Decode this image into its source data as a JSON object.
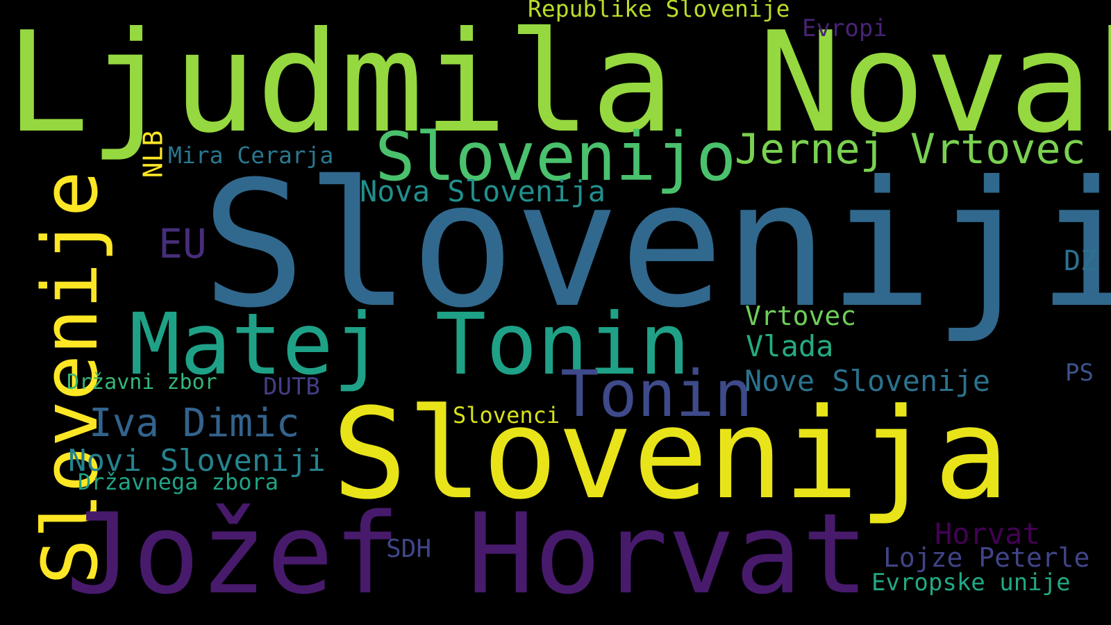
{
  "background": "#000000",
  "words": [
    {
      "text": "Ljudmila Novak",
      "color": "#95d840"
    },
    {
      "text": "Slovenijo",
      "color": "#4ac16d"
    },
    {
      "text": "Jernej Vrtovec",
      "color": "#7ad151"
    },
    {
      "text": "Republike Slovenije",
      "color": "#b8de29"
    },
    {
      "text": "Evropi",
      "color": "#482475"
    },
    {
      "text": "NLB",
      "color": "#fde725"
    },
    {
      "text": "Mira Cerarja",
      "color": "#2a788e"
    },
    {
      "text": "Nova Slovenija",
      "color": "#21908d"
    },
    {
      "text": "Slovenije",
      "color": "#fde725"
    },
    {
      "text": "Sloveniji",
      "color": "#31688e"
    },
    {
      "text": "EU",
      "color": "#472d7b"
    },
    {
      "text": "DZ",
      "color": "#2c728e"
    },
    {
      "text": "Matej Tonin",
      "color": "#1fa187"
    },
    {
      "text": "Vrtovec",
      "color": "#6ece58"
    },
    {
      "text": "Vlada",
      "color": "#25ab82"
    },
    {
      "text": "Tonin",
      "color": "#3e4a89"
    },
    {
      "text": "Državni zbor",
      "color": "#35b779"
    },
    {
      "text": "DUTB",
      "color": "#433e85"
    },
    {
      "text": "Nove Slovenije",
      "color": "#2c728e"
    },
    {
      "text": "PS",
      "color": "#3b528b"
    },
    {
      "text": "Iva Dimic",
      "color": "#33638d"
    },
    {
      "text": "Slovenci",
      "color": "#d8e219"
    },
    {
      "text": "Slovenija",
      "color": "#e8e419"
    },
    {
      "text": "Novi Sloveniji",
      "color": "#26828e"
    },
    {
      "text": "Državnega zbora",
      "color": "#20a386"
    },
    {
      "text": "Jožef Horvat",
      "color": "#481a6c"
    },
    {
      "text": "SDH",
      "color": "#3f4788"
    },
    {
      "text": "Horvat",
      "color": "#440154"
    },
    {
      "text": "Lojze Peterle",
      "color": "#414487"
    },
    {
      "text": "Evropske unije",
      "color": "#22a884"
    }
  ]
}
